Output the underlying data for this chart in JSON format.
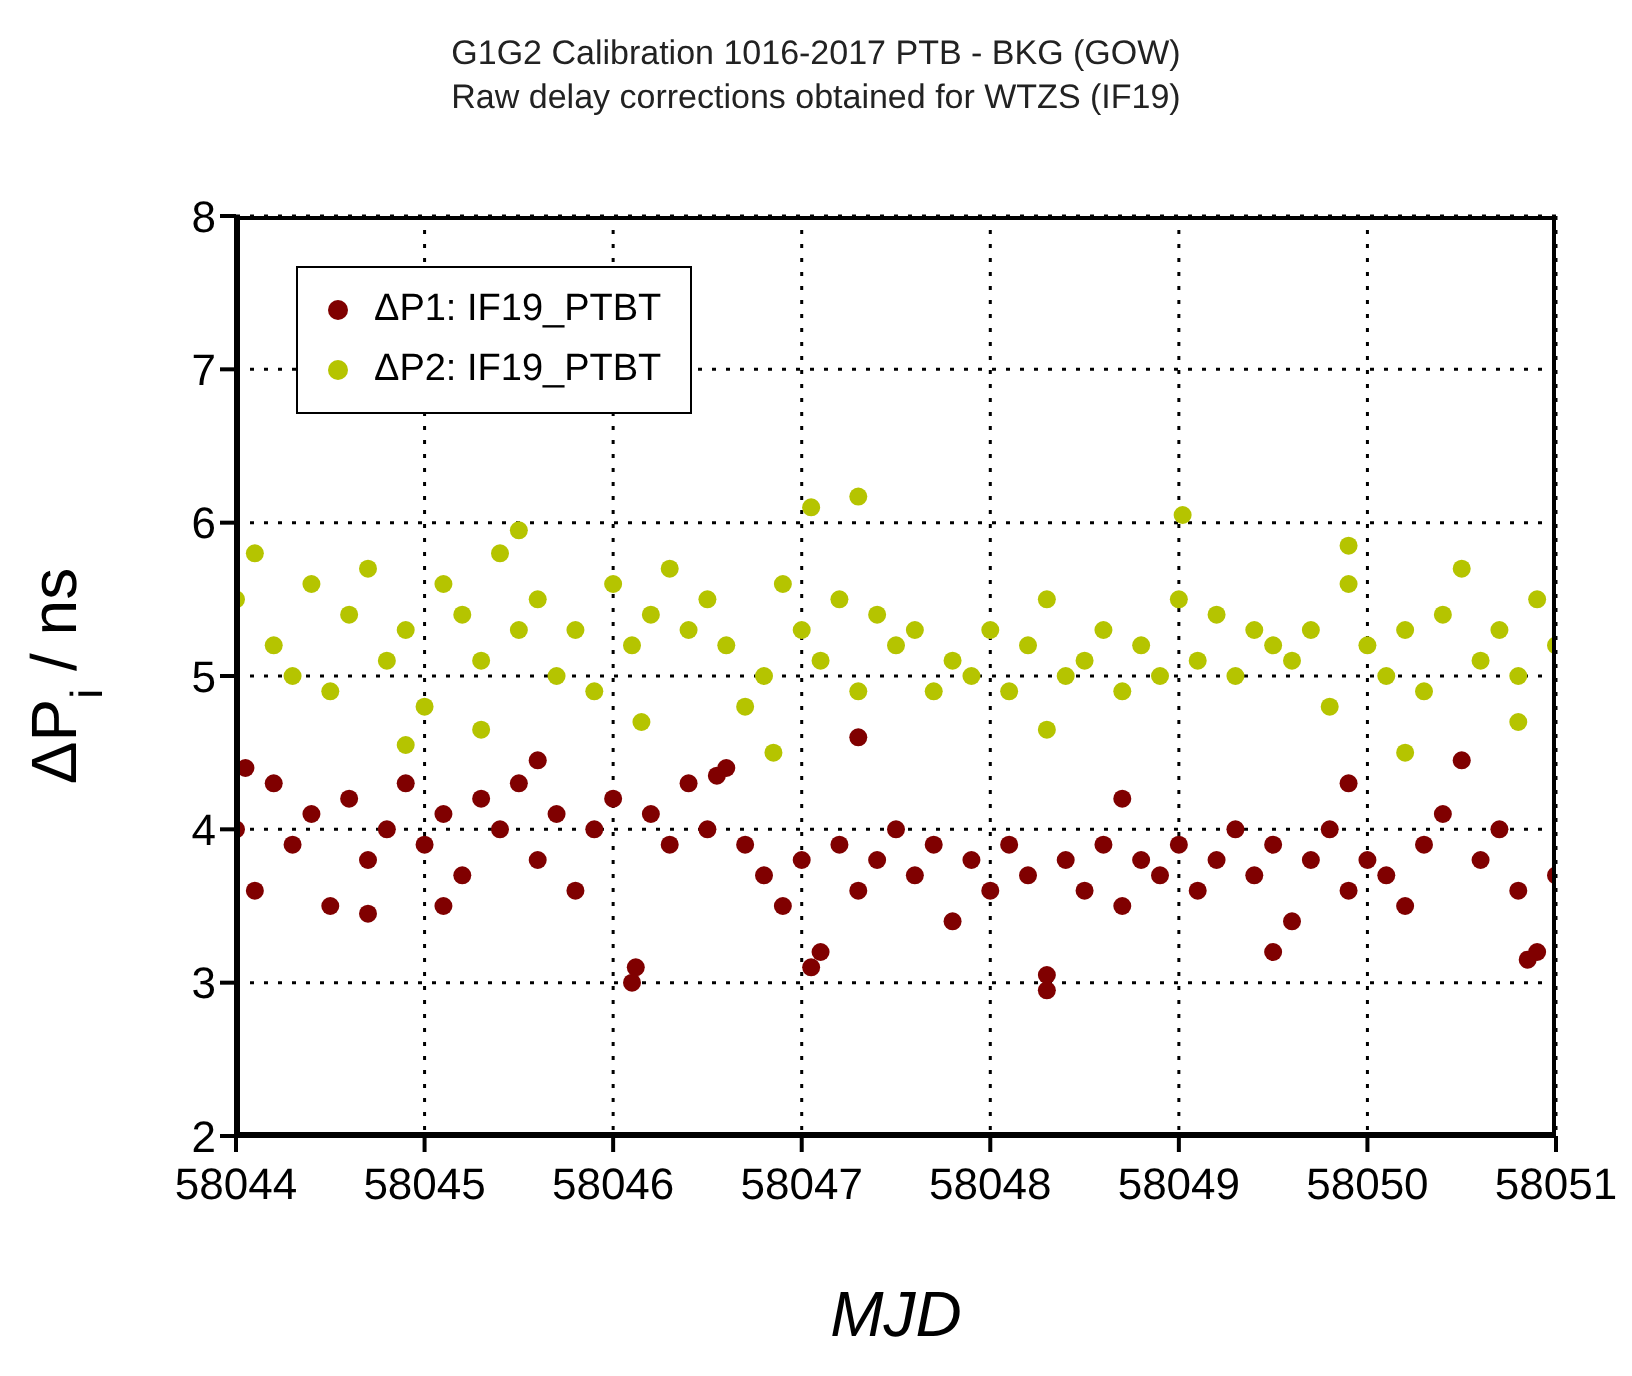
{
  "chart_data": {
    "type": "scatter",
    "title": "G1G2 Calibration 1016-2017 PTB - BKG (GOW)",
    "subtitle": "Raw delay corrections obtained for  WTZS (IF19)",
    "xlabel": "MJD",
    "ylabel": "ΔP$_{i}$ / ns",
    "xlim": [
      58044,
      58051
    ],
    "xticks": [
      58044,
      58045,
      58046,
      58047,
      58048,
      58049,
      58050,
      58051
    ],
    "ylim": [
      2,
      8
    ],
    "yticks": [
      2,
      3,
      4,
      5,
      6,
      7,
      8
    ],
    "grid": true,
    "legend": "top left",
    "marker": "circle",
    "series": [
      {
        "name": "ΔP1: IF19_PTBT",
        "color": "#800000",
        "x": [
          58044.0,
          58044.1,
          58044.2,
          58044.3,
          58044.4,
          58044.5,
          58044.6,
          58044.7,
          58044.8,
          58044.9,
          58045.0,
          58045.1,
          58045.2,
          58045.3,
          58045.4,
          58045.5,
          58045.6,
          58045.7,
          58045.8,
          58045.9,
          58046.0,
          58046.1,
          58046.2,
          58046.3,
          58046.4,
          58046.5,
          58046.6,
          58046.7,
          58046.8,
          58046.9,
          58047.0,
          58047.1,
          58047.2,
          58047.3,
          58047.4,
          58047.5,
          58047.6,
          58047.7,
          58047.8,
          58047.9,
          58048.0,
          58048.1,
          58048.2,
          58048.3,
          58048.4,
          58048.5,
          58048.6,
          58048.7,
          58048.8,
          58048.9,
          58049.0,
          58049.1,
          58049.2,
          58049.3,
          58049.4,
          58049.5,
          58049.6,
          58049.7,
          58049.8,
          58049.9,
          58050.0,
          58050.1,
          58050.2,
          58050.3,
          58050.4,
          58050.5,
          58050.6,
          58050.7,
          58050.8,
          58050.9,
          58051.0,
          58044.05,
          58044.7,
          58045.6,
          58046.12,
          58046.55,
          58047.3,
          58047.05,
          58048.3,
          58049.5,
          58050.85,
          58045.1,
          58048.7,
          58049.9
        ],
        "values": [
          4.0,
          3.6,
          4.3,
          3.9,
          4.1,
          3.5,
          4.2,
          3.8,
          4.0,
          4.3,
          3.9,
          4.1,
          3.7,
          4.2,
          4.0,
          4.3,
          3.8,
          4.1,
          3.6,
          4.0,
          4.2,
          3.0,
          4.1,
          3.9,
          4.3,
          4.0,
          4.4,
          3.9,
          3.7,
          3.5,
          3.8,
          3.2,
          3.9,
          3.6,
          3.8,
          4.0,
          3.7,
          3.9,
          3.4,
          3.8,
          3.6,
          3.9,
          3.7,
          2.95,
          3.8,
          3.6,
          3.9,
          3.5,
          3.8,
          3.7,
          3.9,
          3.6,
          3.8,
          4.0,
          3.7,
          3.9,
          3.4,
          3.8,
          4.0,
          3.6,
          3.8,
          3.7,
          3.5,
          3.9,
          4.1,
          4.45,
          3.8,
          4.0,
          3.6,
          3.2,
          3.7,
          4.4,
          3.45,
          4.45,
          3.1,
          4.35,
          4.6,
          3.1,
          3.05,
          3.2,
          3.15,
          3.5,
          4.2,
          4.3
        ]
      },
      {
        "name": "ΔP2: IF19_PTBT",
        "color": "#b5c400",
        "x": [
          58044.0,
          58044.1,
          58044.2,
          58044.3,
          58044.4,
          58044.5,
          58044.6,
          58044.7,
          58044.8,
          58044.9,
          58045.0,
          58045.1,
          58045.2,
          58045.3,
          58045.4,
          58045.5,
          58045.6,
          58045.7,
          58045.8,
          58045.9,
          58046.0,
          58046.1,
          58046.2,
          58046.3,
          58046.4,
          58046.5,
          58046.6,
          58046.7,
          58046.8,
          58046.9,
          58047.0,
          58047.1,
          58047.2,
          58047.3,
          58047.4,
          58047.5,
          58047.6,
          58047.7,
          58047.8,
          58047.9,
          58048.0,
          58048.1,
          58048.2,
          58048.3,
          58048.4,
          58048.5,
          58048.6,
          58048.7,
          58048.8,
          58048.9,
          58049.0,
          58049.1,
          58049.2,
          58049.3,
          58049.4,
          58049.5,
          58049.6,
          58049.7,
          58049.8,
          58049.9,
          58050.0,
          58050.1,
          58050.2,
          58050.3,
          58050.4,
          58050.5,
          58050.6,
          58050.7,
          58050.8,
          58050.9,
          58051.0,
          58047.05,
          58047.3,
          58049.02,
          58044.9,
          58046.85,
          58045.5,
          58050.2,
          58050.8,
          58045.3,
          58046.15,
          58048.3,
          58049.9
        ],
        "values": [
          5.5,
          5.8,
          5.2,
          5.0,
          5.6,
          4.9,
          5.4,
          5.7,
          5.1,
          5.3,
          4.8,
          5.6,
          5.4,
          5.1,
          5.8,
          5.3,
          5.5,
          5.0,
          5.3,
          4.9,
          5.6,
          5.2,
          5.4,
          5.7,
          5.3,
          5.5,
          5.2,
          4.8,
          5.0,
          5.6,
          5.3,
          5.1,
          5.5,
          4.9,
          5.4,
          5.2,
          5.3,
          4.9,
          5.1,
          5.0,
          5.3,
          4.9,
          5.2,
          5.5,
          5.0,
          5.1,
          5.3,
          4.9,
          5.2,
          5.0,
          5.5,
          5.1,
          5.4,
          5.0,
          5.3,
          5.2,
          5.1,
          5.3,
          4.8,
          5.6,
          5.2,
          5.0,
          5.3,
          4.9,
          5.4,
          5.7,
          5.1,
          5.3,
          5.0,
          5.5,
          5.2,
          6.1,
          6.17,
          6.05,
          4.55,
          4.5,
          5.95,
          4.5,
          4.7,
          4.65,
          4.7,
          4.65,
          5.85
        ]
      }
    ]
  }
}
